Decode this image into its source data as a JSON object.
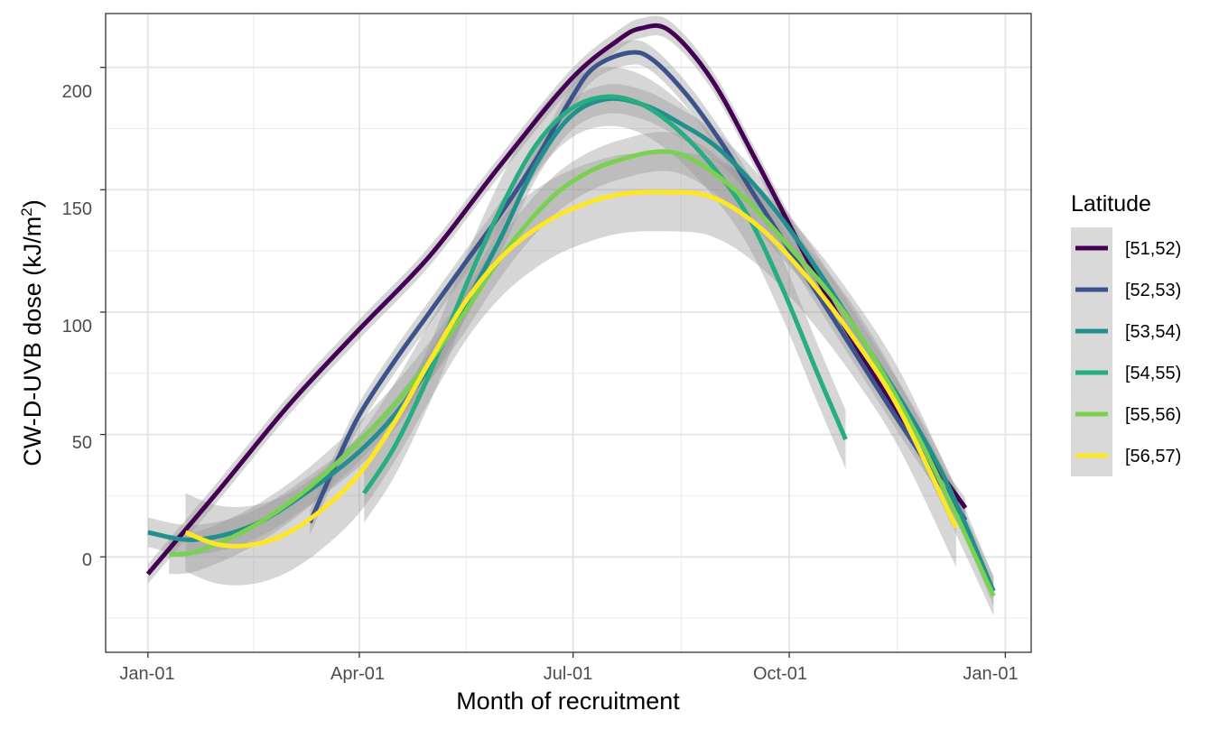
{
  "chart_data": {
    "type": "line",
    "title": "",
    "xlabel": "Month of recruitment",
    "ylabel_main": "CW-D-UVB dose (kJ/m",
    "ylabel_sup": "2",
    "ylabel_close": ")",
    "x_ticks": [
      "Jan-01",
      "Apr-01",
      "Jul-01",
      "Oct-01",
      "Jan-01"
    ],
    "y_ticks": [
      "0",
      "50",
      "100",
      "150",
      "200"
    ],
    "y_tick_values": [
      0,
      50,
      100,
      150,
      200
    ],
    "xlim_days": [
      -18,
      376
    ],
    "ylim": [
      -39,
      222
    ],
    "grid": true,
    "legend_title": "Latitude",
    "legend_position": "right",
    "note": "x values are days since Jan-01; ribbons are smoothing confidence bands",
    "series": [
      {
        "name": "[51,52)",
        "color": "#440154",
        "x": [
          0,
          30,
          60,
          90,
          120,
          150,
          180,
          200,
          210,
          222,
          240,
          260,
          290,
          320,
          348
        ],
        "y": [
          -7,
          27,
          62,
          93,
          123,
          160,
          195,
          211,
          216,
          215,
          195,
          160,
          105,
          58,
          20
        ],
        "band": 4
      },
      {
        "name": "[52,53)",
        "color": "#3b528b",
        "x": [
          69,
          80,
          90,
          105,
          120,
          135,
          150,
          165,
          180,
          190,
          205,
          215,
          230,
          245,
          260,
          290,
          320,
          348
        ],
        "y": [
          14,
          38,
          58,
          80,
          100,
          120,
          140,
          162,
          187,
          200,
          206,
          203,
          188,
          168,
          145,
          100,
          55,
          15
        ],
        "band": 5
      },
      {
        "name": "[53,54)",
        "color": "#21908c",
        "x": [
          0,
          20,
          45,
          70,
          90,
          105,
          120,
          135,
          150,
          165,
          180,
          195,
          210,
          225,
          245,
          270,
          300,
          335,
          360
        ],
        "y": [
          10,
          7,
          13,
          28,
          43,
          58,
          78,
          103,
          130,
          160,
          180,
          187,
          185,
          178,
          165,
          138,
          95,
          40,
          -14
        ],
        "band": 6
      },
      {
        "name": "[54,55)",
        "color": "#27ad81",
        "x": [
          92,
          105,
          120,
          135,
          150,
          165,
          180,
          195,
          210,
          225,
          240,
          255,
          270,
          285,
          297
        ],
        "y": [
          26,
          45,
          75,
          110,
          142,
          168,
          183,
          188,
          185,
          175,
          160,
          140,
          110,
          75,
          48
        ],
        "band": 12
      },
      {
        "name": "[55,56)",
        "color": "#7ad151",
        "x": [
          9,
          20,
          40,
          60,
          80,
          100,
          120,
          135,
          150,
          165,
          180,
          200,
          225,
          250,
          270,
          300,
          330,
          360
        ],
        "y": [
          1,
          2,
          10,
          22,
          38,
          57,
          80,
          100,
          122,
          140,
          153,
          162,
          165,
          150,
          130,
          95,
          45,
          -16
        ],
        "band": 8
      },
      {
        "name": "[56,57)",
        "color": "#fde725",
        "x": [
          16,
          30,
          45,
          60,
          75,
          90,
          105,
          120,
          135,
          150,
          165,
          180,
          200,
          220,
          240,
          260,
          280,
          300,
          320,
          344
        ],
        "y": [
          10,
          5,
          5,
          10,
          20,
          34,
          55,
          80,
          104,
          122,
          134,
          142,
          148,
          149,
          147,
          135,
          115,
          90,
          60,
          12
        ],
        "band": 16
      }
    ]
  }
}
